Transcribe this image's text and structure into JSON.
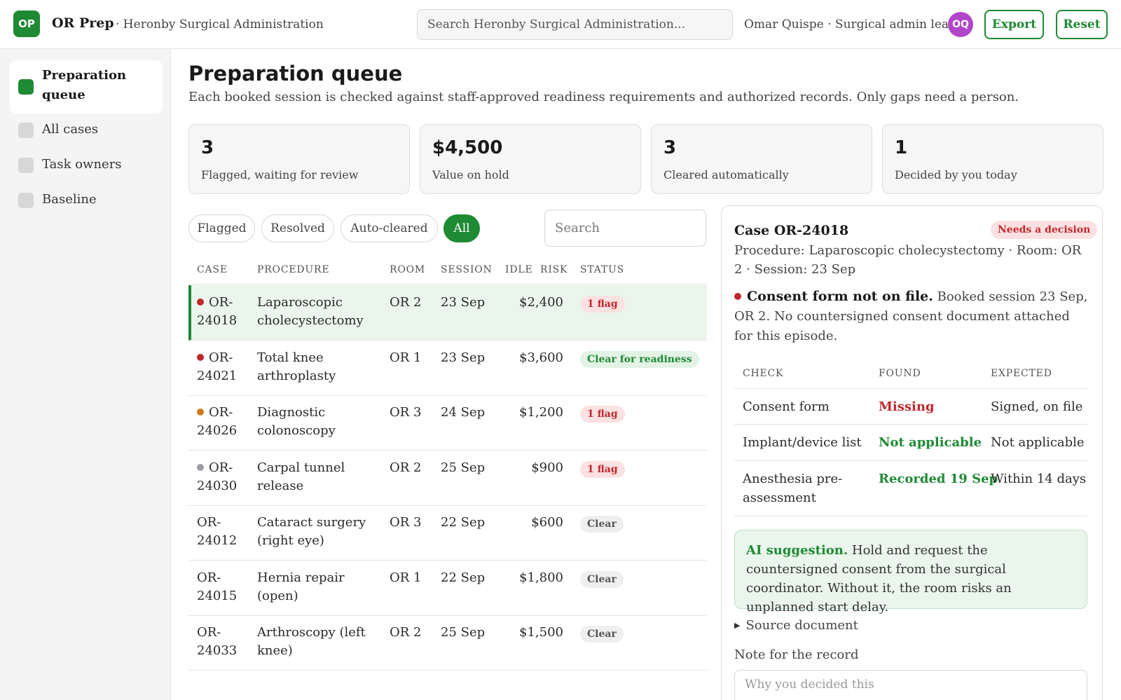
{
  "header": {
    "logo_text": "OP",
    "app_name": "OR Prep",
    "org": "· Heronby Surgical Administration",
    "search_placeholder": "Search Heronby Surgical Administration...",
    "user": "Omar Quispe · Surgical admin lead",
    "avatar_initials": "OQ",
    "export_label": "Export",
    "reset_label": "Reset"
  },
  "sidebar": {
    "items": [
      {
        "label": "Preparation queue",
        "active": true
      },
      {
        "label": "All cases",
        "active": false
      },
      {
        "label": "Task owners",
        "active": false
      },
      {
        "label": "Baseline",
        "active": false
      }
    ]
  },
  "main": {
    "title": "Preparation queue",
    "description": "Each booked session is checked against staff-approved readiness requirements and authorized records. Only gaps need a person.",
    "stats": [
      {
        "value": "3",
        "label": "Flagged, waiting for review"
      },
      {
        "value": "$4,500",
        "label": "Value on hold"
      },
      {
        "value": "3",
        "label": "Cleared automatically"
      },
      {
        "value": "1",
        "label": "Decided by you today"
      }
    ],
    "filters": [
      {
        "label": "Flagged",
        "active": false
      },
      {
        "label": "Resolved",
        "active": false
      },
      {
        "label": "Auto-cleared",
        "active": false
      },
      {
        "label": "All",
        "active": true
      }
    ],
    "search_placeholder": "Search",
    "table": {
      "headers": {
        "case": "CASE",
        "procedure": "PROCEDURE",
        "room": "ROOM",
        "session": "SESSION",
        "idle_risk": "IDLE  RISK",
        "status": "STATUS"
      },
      "rows": [
        {
          "case": "OR-24018",
          "procedure": "Laparoscopic cholecystectomy",
          "room": "OR 2",
          "session": "23 Sep",
          "risk": "$2,400",
          "status": "1 flag",
          "status_kind": "flag",
          "dot": "#c0282d",
          "selected": true
        },
        {
          "case": "OR-24021",
          "procedure": "Total knee arthroplasty",
          "room": "OR 1",
          "session": "23 Sep",
          "risk": "$3,600",
          "status": "Clear for readiness",
          "status_kind": "ready",
          "dot": "#c0282d",
          "selected": false
        },
        {
          "case": "OR-24026",
          "procedure": "Diagnostic colonoscopy",
          "room": "OR 3",
          "session": "24 Sep",
          "risk": "$1,200",
          "status": "1 flag",
          "status_kind": "flag",
          "dot": "#d07a1f",
          "selected": false
        },
        {
          "case": "OR-24030",
          "procedure": "Carpal tunnel release",
          "room": "OR 2",
          "session": "25 Sep",
          "risk": "$900",
          "status": "1 flag",
          "status_kind": "flag",
          "dot": "#9a9aa8",
          "selected": false
        },
        {
          "case": "OR-24012",
          "procedure": "Cataract surgery (right eye)",
          "room": "OR 3",
          "session": "22 Sep",
          "risk": "$600",
          "status": "Clear",
          "status_kind": "clear",
          "dot": "",
          "selected": false
        },
        {
          "case": "OR-24015",
          "procedure": "Hernia repair (open)",
          "room": "OR 1",
          "session": "22 Sep",
          "risk": "$1,800",
          "status": "Clear",
          "status_kind": "clear",
          "dot": "",
          "selected": false
        },
        {
          "case": "OR-24033",
          "procedure": "Arthroscopy (left knee)",
          "room": "OR 2",
          "session": "25 Sep",
          "risk": "$1,500",
          "status": "Clear",
          "status_kind": "clear",
          "dot": "",
          "selected": false
        }
      ]
    }
  },
  "detail": {
    "title": "Case OR-24018",
    "badge": "Needs a decision",
    "meta": "Procedure: Laparoscopic cholecystectomy · Room: OR 2 · Session: 23 Sep",
    "issue_title": "Consent form not on file.",
    "issue_text": " Booked session 23 Sep, OR 2. No countersigned consent document attached for this episode.",
    "checks": {
      "headers": {
        "check": "CHECK",
        "found": "FOUND",
        "expected": "EXPECTED"
      },
      "rows": [
        {
          "check": "Consent form",
          "found": "Missing",
          "found_kind": "bad",
          "expected": "Signed, on file"
        },
        {
          "check": "Implant/device list",
          "found": "Not applicable",
          "found_kind": "good",
          "expected": "Not applicable"
        },
        {
          "check": "Anesthesia pre-assessment",
          "found": "Recorded 19 Sep",
          "found_kind": "good",
          "expected": "Within 14 days"
        }
      ]
    },
    "ai_label": "AI suggestion.",
    "ai_text": " Hold and request the countersigned consent from the surgical coordinator. Without it, the room risks an unplanned start delay.",
    "source_label": "Source document",
    "note_label": "Note for the record",
    "note_placeholder": "Why you decided this"
  },
  "colors": {
    "accent": "#1f8a34",
    "danger": "#c0282d",
    "flag_bg": "#fbe1e1",
    "ready_bg": "#e3f3e6",
    "clear_bg": "#efefef",
    "selected_row": "#eaf5ec"
  }
}
